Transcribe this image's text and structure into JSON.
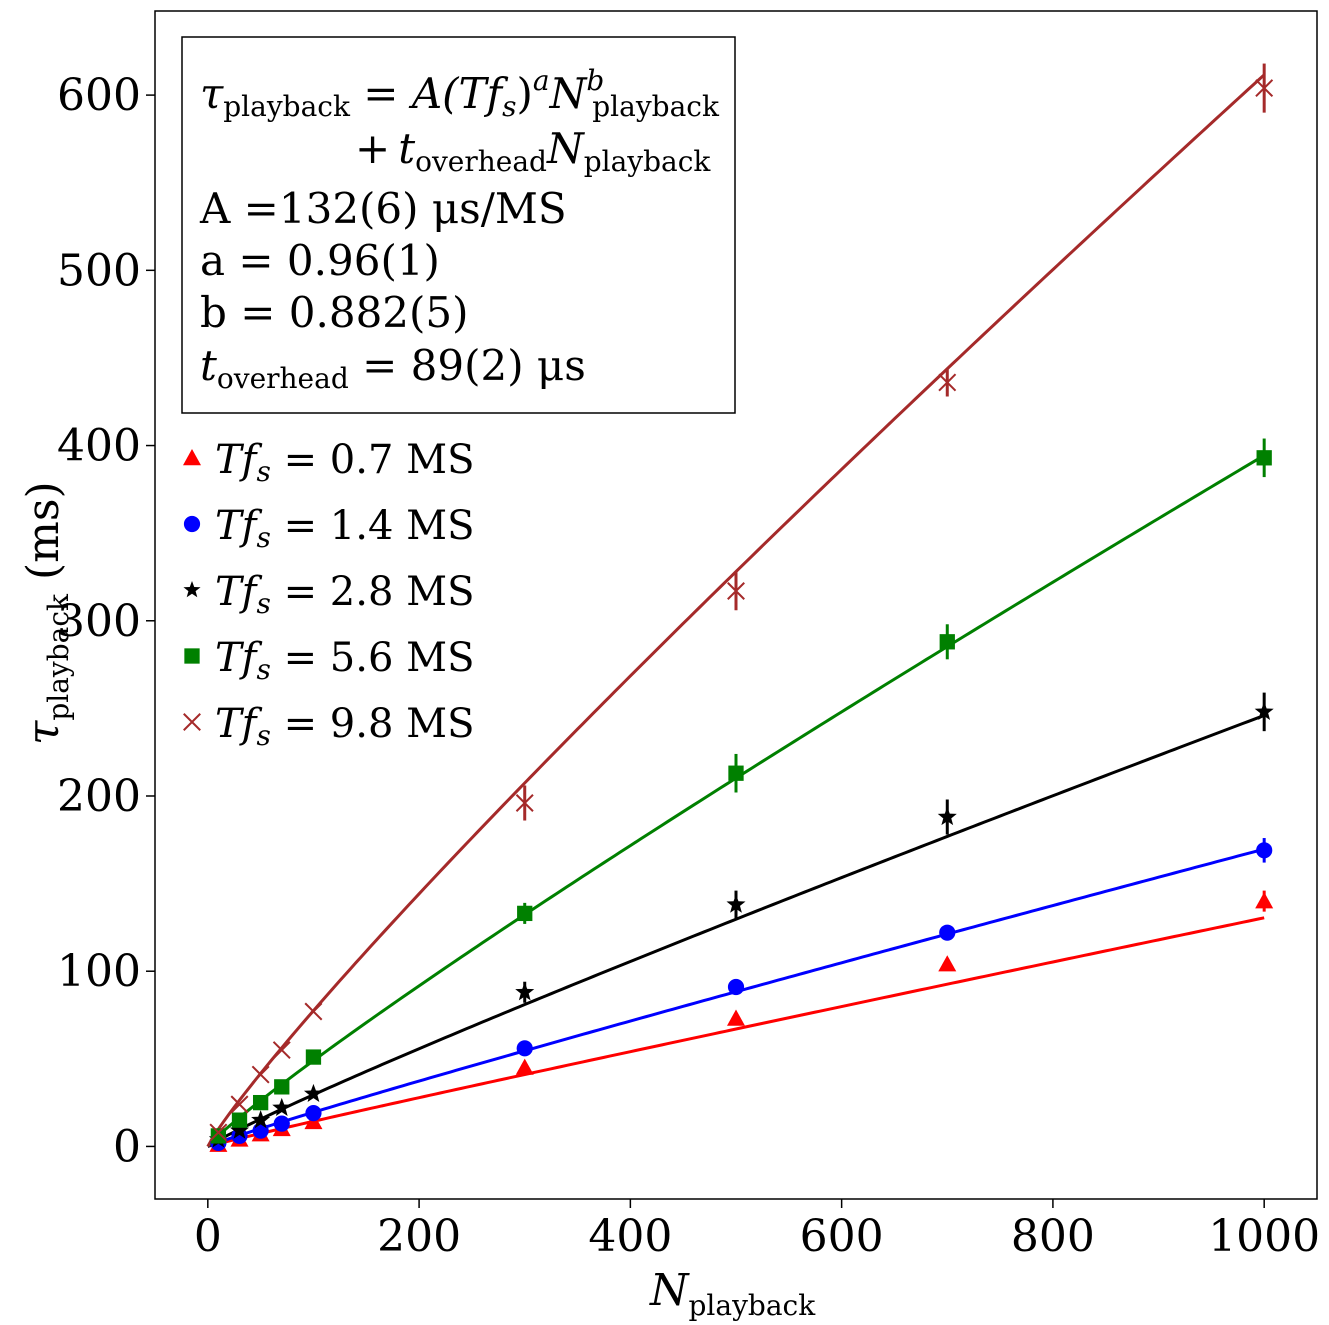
{
  "chart_data": {
    "type": "scatter",
    "xlabel_main": "N",
    "xlabel_sub": "playback",
    "ylabel_main": "τ",
    "ylabel_sub": "playback",
    "ylabel_unit": "(ms)",
    "xlim": [
      -50,
      1050
    ],
    "ylim": [
      -30,
      648
    ],
    "xticks": [
      0,
      200,
      400,
      600,
      800,
      1000
    ],
    "yticks": [
      0,
      100,
      200,
      300,
      400,
      500,
      600
    ],
    "legend_position": "upper-left",
    "x": [
      10,
      30,
      50,
      70,
      100,
      300,
      500,
      700,
      1000
    ],
    "fit": {
      "A": 0.132,
      "a": 0.96,
      "b": 0.882,
      "t_overhead": 0.089
    },
    "annotation": {
      "line1_lhs": "τ",
      "line1_lhs_sub": "playback",
      "line1_rhs_A": "A(Tf",
      "line1_rhs_s": "s",
      "line1_rhs_close": ")",
      "line1_rhs_a": "a",
      "line1_rhs_N": "N",
      "line1_rhs_b": "b",
      "line1_rhs_sub": "playback",
      "line2_plus": "+",
      "line2_t": "t",
      "line2_t_sub": "overhead",
      "line2_N": "N",
      "line2_N_sub": "playback",
      "line3": "A =132(6) μs/MS",
      "line4": "a = 0.96(1)",
      "line5": "b = 0.882(5)",
      "line6_t": "t",
      "line6_sub": "overhead",
      "line6_rest": " = 89(2) μs"
    },
    "series": [
      {
        "name": "Tfs = 0.7 MS",
        "label_prefix": "Tf",
        "label_sub": "s",
        "label_value": " = 0.7 MS",
        "Tfs": 0.7,
        "color": "#ff0000",
        "marker": "triangle",
        "values": [
          1,
          4,
          7,
          10,
          14,
          45,
          73,
          104,
          140
        ],
        "errors": [
          0,
          0,
          0,
          0,
          0,
          0,
          0,
          0,
          6
        ]
      },
      {
        "name": "Tfs = 1.4 MS",
        "label_prefix": "Tf",
        "label_sub": "s",
        "label_value": " = 1.4 MS",
        "Tfs": 1.4,
        "color": "#0000ff",
        "marker": "circle",
        "values": [
          2,
          6,
          9,
          13,
          19,
          56,
          91,
          122,
          169
        ],
        "errors": [
          0,
          0,
          0,
          0,
          0,
          0,
          0,
          0,
          7
        ]
      },
      {
        "name": "Tfs = 2.8 MS",
        "label_prefix": "Tf",
        "label_sub": "s",
        "label_value": " = 2.8 MS",
        "Tfs": 2.8,
        "color": "#000000",
        "marker": "star",
        "values": [
          4,
          9,
          15,
          22,
          30,
          88,
          138,
          188,
          248
        ],
        "errors": [
          0,
          0,
          0,
          0,
          0,
          6,
          8,
          10,
          11
        ]
      },
      {
        "name": "Tfs = 5.6 MS",
        "label_prefix": "Tf",
        "label_sub": "s",
        "label_value": " = 5.6 MS",
        "Tfs": 5.6,
        "color": "#008000",
        "marker": "square",
        "values": [
          6,
          15,
          25,
          34,
          51,
          133,
          213,
          288,
          393
        ],
        "errors": [
          0,
          0,
          0,
          0,
          0,
          6,
          11,
          10,
          11
        ]
      },
      {
        "name": "Tfs = 9.8 MS",
        "label_prefix": "Tf",
        "label_sub": "s",
        "label_value": " = 9.8 MS",
        "Tfs": 9.8,
        "color": "#a52a2a",
        "marker": "x",
        "values": [
          8,
          24,
          41,
          55,
          77,
          196,
          317,
          436,
          604
        ],
        "errors": [
          0,
          0,
          0,
          0,
          0,
          10,
          11,
          8,
          14
        ]
      }
    ]
  }
}
